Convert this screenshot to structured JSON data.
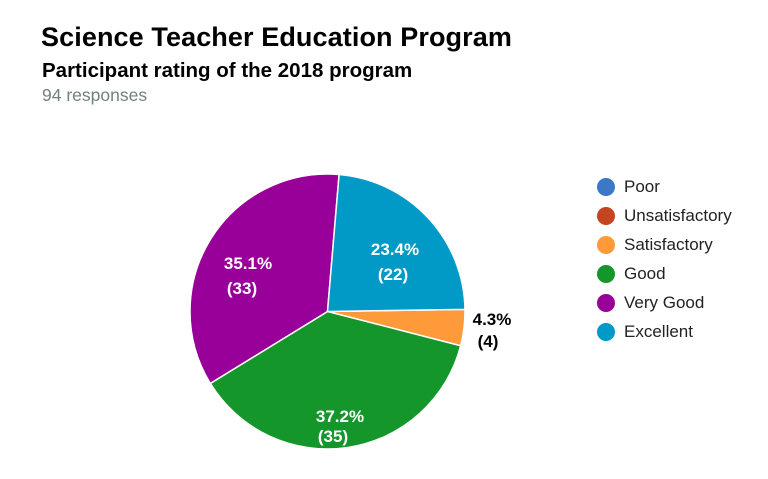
{
  "header": {
    "title": "Science Teacher Education Program",
    "subtitle": "Participant rating of the 2018 program",
    "responses": "94 responses"
  },
  "chart_data": {
    "type": "pie",
    "title": "Science Teacher Education Program",
    "subtitle": "Participant rating of the 2018 program",
    "total_responses": 94,
    "legend_position": "right",
    "categories": [
      "Poor",
      "Unsatisfactory",
      "Satisfactory",
      "Good",
      "Very Good",
      "Excellent"
    ],
    "values": [
      0,
      0,
      4,
      35,
      33,
      22
    ],
    "percentages": [
      0,
      0,
      4.3,
      37.2,
      35.1,
      23.4
    ],
    "colors": [
      "#3c78c6",
      "#c4451f",
      "#ff9a3a",
      "#14962a",
      "#990099",
      "#0199c6"
    ],
    "slice_labels": [
      {
        "category": "Satisfactory",
        "percent": "4.3%",
        "count": "(4)",
        "inside": false
      },
      {
        "category": "Good",
        "percent": "37.2%",
        "count": "(35)",
        "inside": true
      },
      {
        "category": "Very Good",
        "percent": "35.1%",
        "count": "(33)",
        "inside": true
      },
      {
        "category": "Excellent",
        "percent": "23.4%",
        "count": "(22)",
        "inside": true
      }
    ]
  },
  "legend": {
    "items": [
      {
        "label": "Poor",
        "color": "#3c78c6"
      },
      {
        "label": "Unsatisfactory",
        "color": "#c4451f"
      },
      {
        "label": "Satisfactory",
        "color": "#ff9a3a"
      },
      {
        "label": "Good",
        "color": "#14962a"
      },
      {
        "label": "Very Good",
        "color": "#990099"
      },
      {
        "label": "Excellent",
        "color": "#0199c6"
      }
    ]
  }
}
